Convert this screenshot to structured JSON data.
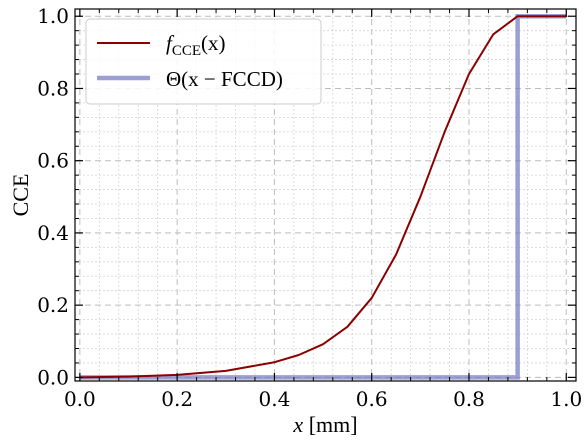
{
  "chart_data": {
    "type": "line",
    "xlabel": "x [mm]",
    "xlabel_var": "x",
    "xlabel_unit": " [mm]",
    "ylabel": "CCE",
    "xlim": [
      -0.01,
      1.02
    ],
    "ylim": [
      -0.01,
      1.02
    ],
    "xticks": [
      0.0,
      0.2,
      0.4,
      0.6,
      0.8,
      1.0
    ],
    "xtick_labels": [
      "0.0",
      "0.2",
      "0.4",
      "0.6",
      "0.8",
      "1.0"
    ],
    "yticks": [
      0.0,
      0.2,
      0.4,
      0.6,
      0.8,
      1.0
    ],
    "ytick_labels": [
      "0.0",
      "0.2",
      "0.4",
      "0.6",
      "0.8",
      "1.0"
    ],
    "grid": true,
    "legend_position": "top-left",
    "series": [
      {
        "name": "f_CCE(x)",
        "legend_main": "f",
        "legend_sub": "CCE",
        "legend_tail": "(x)",
        "color": "#8b0000",
        "x": [
          0.0,
          0.1,
          0.2,
          0.3,
          0.4,
          0.45,
          0.5,
          0.55,
          0.6,
          0.65,
          0.7,
          0.75,
          0.8,
          0.85,
          0.9,
          0.95,
          1.0
        ],
        "y": [
          0.0,
          0.002,
          0.007,
          0.018,
          0.042,
          0.062,
          0.092,
          0.14,
          0.22,
          0.34,
          0.5,
          0.68,
          0.84,
          0.95,
          1.0,
          1.0,
          1.0
        ]
      },
      {
        "name": "Θ(x − FCCD)",
        "legend_text": "Θ(x − FCCD)",
        "color": "#7b7fc4",
        "x": [
          0.0,
          0.9,
          0.9,
          1.0
        ],
        "y": [
          0.0,
          0.0,
          1.0,
          1.0
        ]
      }
    ]
  }
}
